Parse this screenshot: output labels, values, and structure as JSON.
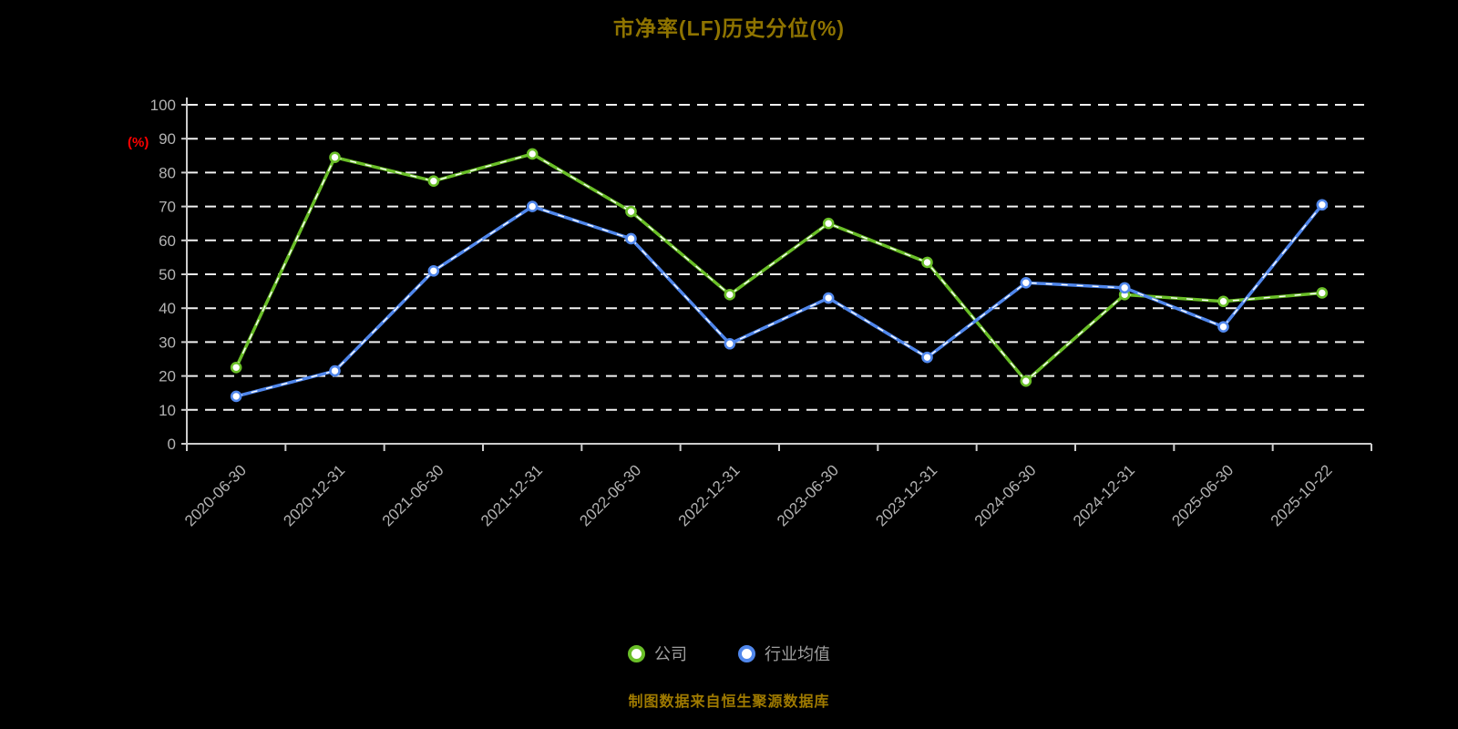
{
  "title": "市净率(LF)历史分位(%)",
  "y_axis_unit": "(%)",
  "footer_note": "制图数据来自恒生聚源数据库",
  "chart_data": {
    "type": "line",
    "categories": [
      "2020-06-30",
      "2020-12-31",
      "2021-06-30",
      "2021-12-31",
      "2022-06-30",
      "2022-12-31",
      "2023-06-30",
      "2023-12-31",
      "2024-06-30",
      "2024-12-31",
      "2025-06-30",
      "2025-10-22"
    ],
    "series": [
      {
        "name": "公司",
        "color": "#6abf28",
        "values": [
          22.5,
          84.5,
          77.5,
          85.5,
          68.5,
          44,
          65,
          53.5,
          18.5,
          44,
          42,
          44.5
        ]
      },
      {
        "name": "行业均值",
        "color": "#5087ec",
        "values": [
          14,
          21.5,
          51,
          70,
          60.5,
          29.5,
          43,
          25.5,
          47.5,
          46,
          34.5,
          70.5
        ]
      }
    ],
    "title": "市净率(LF)历史分位(%)",
    "xlabel": "",
    "ylabel": "(%)",
    "ylim": [
      0,
      100
    ],
    "yticks": [
      0,
      10,
      20,
      30,
      40,
      50,
      60,
      70,
      80,
      90,
      100
    ],
    "grid": "horizontal-dashed",
    "legend_position": "bottom",
    "colors": {
      "background": "#000000",
      "axis": "#cccccc",
      "tick_label": "#b3b3b3",
      "grid": "#ffffff",
      "title": "#8f7400",
      "unit_label": "#ff0000",
      "footer": "#9f7a00",
      "legend_label": "#9e9e9e",
      "marker_fill": "#ffffff"
    }
  }
}
